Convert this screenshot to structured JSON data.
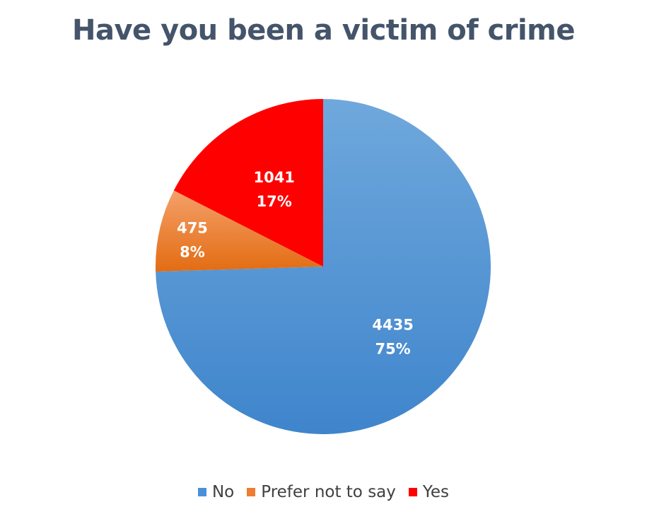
{
  "chart_data": {
    "type": "pie",
    "title": "Have you been a victim of crime",
    "slices": [
      {
        "name": "No",
        "value": 4435,
        "percent_label": "75%",
        "color": "#4A90D9"
      },
      {
        "name": "Prefer not to say",
        "value": 475,
        "percent_label": "8%",
        "color": "#ED7D31"
      },
      {
        "name": "Yes",
        "value": 1041,
        "percent_label": "17%",
        "color": "#FF0000"
      }
    ],
    "legend_position": "bottom"
  }
}
